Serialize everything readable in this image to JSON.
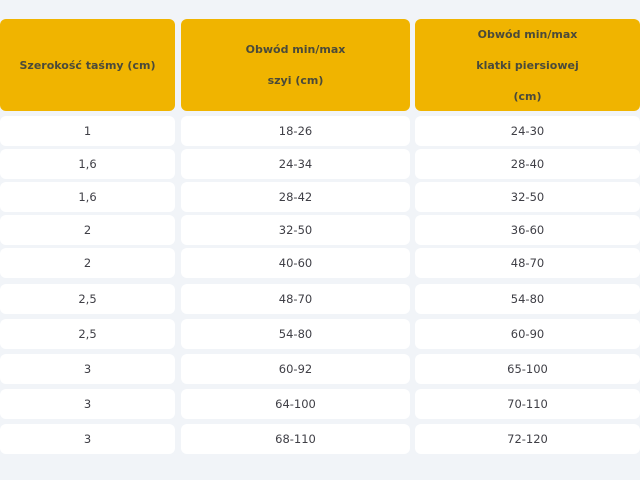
{
  "table": {
    "headers": [
      [
        "Szerokość taśmy (cm)"
      ],
      [
        "Obwód min/max",
        "szyi (cm)"
      ],
      [
        "Obwód min/max",
        "klatki piersiowej",
        "(cm)"
      ]
    ],
    "rows": [
      [
        "1",
        "18-26",
        "24-30"
      ],
      [
        "1,6",
        "24-34",
        "28-40"
      ],
      [
        "1,6",
        "28-42",
        "32-50"
      ],
      [
        "2",
        "32-50",
        "36-60"
      ],
      [
        "2",
        "40-60",
        "48-70"
      ],
      [
        "2,5",
        "48-70",
        "54-80"
      ],
      [
        "2,5",
        "54-80",
        "60-90"
      ],
      [
        "3",
        "60-92",
        "65-100"
      ],
      [
        "3",
        "64-100",
        "70-110"
      ],
      [
        "3",
        "68-110",
        "72-120"
      ]
    ],
    "header_color": "#f0b400"
  }
}
